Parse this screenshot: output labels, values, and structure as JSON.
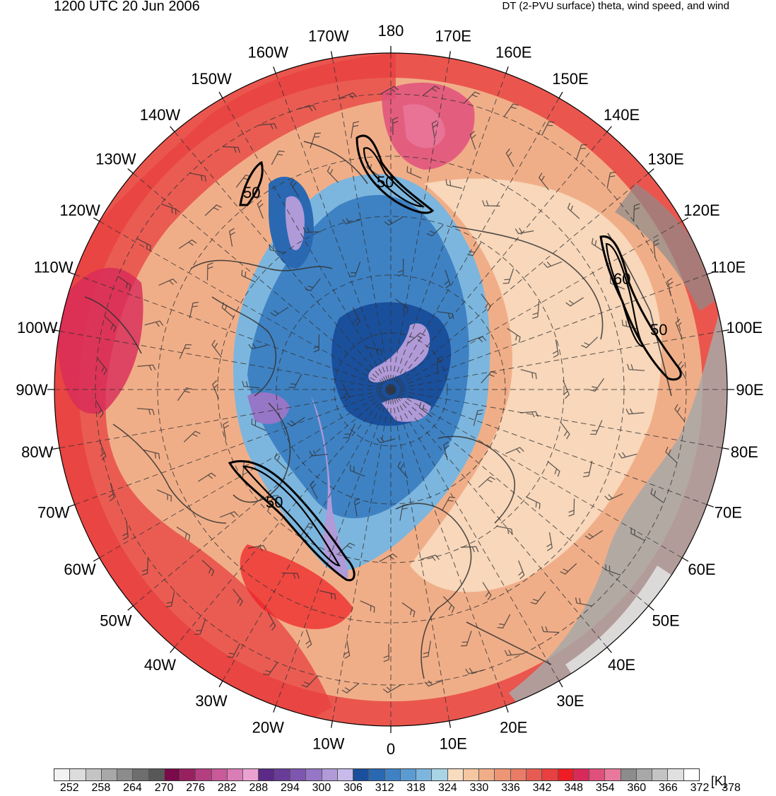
{
  "header": {
    "valid_time": "1200 UTC 20 Jun 2006",
    "field_description": "DT (2-PVU surface) theta, wind speed, and wind"
  },
  "map": {
    "projection": "north-polar-stereographic",
    "longitude_labels": [
      {
        "label": "180",
        "lon": 180
      },
      {
        "label": "170E",
        "lon": 170
      },
      {
        "label": "160E",
        "lon": 160
      },
      {
        "label": "150E",
        "lon": 150
      },
      {
        "label": "140E",
        "lon": 140
      },
      {
        "label": "130E",
        "lon": 130
      },
      {
        "label": "120E",
        "lon": 120
      },
      {
        "label": "110E",
        "lon": 110
      },
      {
        "label": "100E",
        "lon": 100
      },
      {
        "label": "90E",
        "lon": 90
      },
      {
        "label": "80E",
        "lon": 80
      },
      {
        "label": "70E",
        "lon": 70
      },
      {
        "label": "60E",
        "lon": 60
      },
      {
        "label": "50E",
        "lon": 50
      },
      {
        "label": "40E",
        "lon": 40
      },
      {
        "label": "30E",
        "lon": 30
      },
      {
        "label": "20E",
        "lon": 20
      },
      {
        "label": "10E",
        "lon": 10
      },
      {
        "label": "0",
        "lon": 0
      },
      {
        "label": "10W",
        "lon": -10
      },
      {
        "label": "20W",
        "lon": -20
      },
      {
        "label": "30W",
        "lon": -30
      },
      {
        "label": "40W",
        "lon": -40
      },
      {
        "label": "50W",
        "lon": -50
      },
      {
        "label": "60W",
        "lon": -60
      },
      {
        "label": "70W",
        "lon": -70
      },
      {
        "label": "80W",
        "lon": -80
      },
      {
        "label": "90W",
        "lon": -90
      },
      {
        "label": "100W",
        "lon": -100
      },
      {
        "label": "110W",
        "lon": -110
      },
      {
        "label": "120W",
        "lon": -120
      },
      {
        "label": "130W",
        "lon": -130
      },
      {
        "label": "140W",
        "lon": -140
      },
      {
        "label": "150W",
        "lon": -150
      },
      {
        "label": "160W",
        "lon": -160
      },
      {
        "label": "170W",
        "lon": -170
      }
    ],
    "wind_speed_contour_labels": [
      "50",
      "50",
      "60",
      "50",
      "50"
    ],
    "jet_streaks": [
      {
        "label": "50",
        "lon": 178,
        "lat": 62
      },
      {
        "label": "50",
        "lon": -152,
        "lat": 63
      },
      {
        "label": "60",
        "lon": 113,
        "lat": 46
      },
      {
        "label": "50",
        "lon": 104,
        "lat": 43
      },
      {
        "label": "50",
        "lon": -32,
        "lat": 62
      }
    ]
  },
  "colorbar": {
    "unit": "[K]",
    "tick_labels": [
      "252",
      "258",
      "264",
      "270",
      "276",
      "282",
      "288",
      "294",
      "300",
      "306",
      "312",
      "318",
      "324",
      "330",
      "336",
      "342",
      "348",
      "354",
      "360",
      "366",
      "372",
      "378"
    ],
    "colors": [
      "#f2f2f2",
      "#dcdcdc",
      "#c4c4c4",
      "#a8a8a8",
      "#8c8c8c",
      "#6e6e6e",
      "#585858",
      "#7a0a4a",
      "#99205e",
      "#b43e80",
      "#c85a9a",
      "#da7cb6",
      "#eca2d0",
      "#5a2a86",
      "#6a3c9a",
      "#7e56b0",
      "#9676c6",
      "#b09ad8",
      "#c8baea",
      "#1a4f9c",
      "#2a68b2",
      "#3e82c4",
      "#5a9cd2",
      "#7cb6de",
      "#a8d4e6",
      "#f8dcc0",
      "#f4c6a2",
      "#f0ae88",
      "#ec9676",
      "#e87c66",
      "#e65c52",
      "#e84040",
      "#ee1c24",
      "#d82a5a",
      "#e0507c",
      "#e8789c",
      "#8c8c8c",
      "#a8a8a8",
      "#c4c4c4",
      "#e0e0e0",
      "#ffffff"
    ]
  }
}
